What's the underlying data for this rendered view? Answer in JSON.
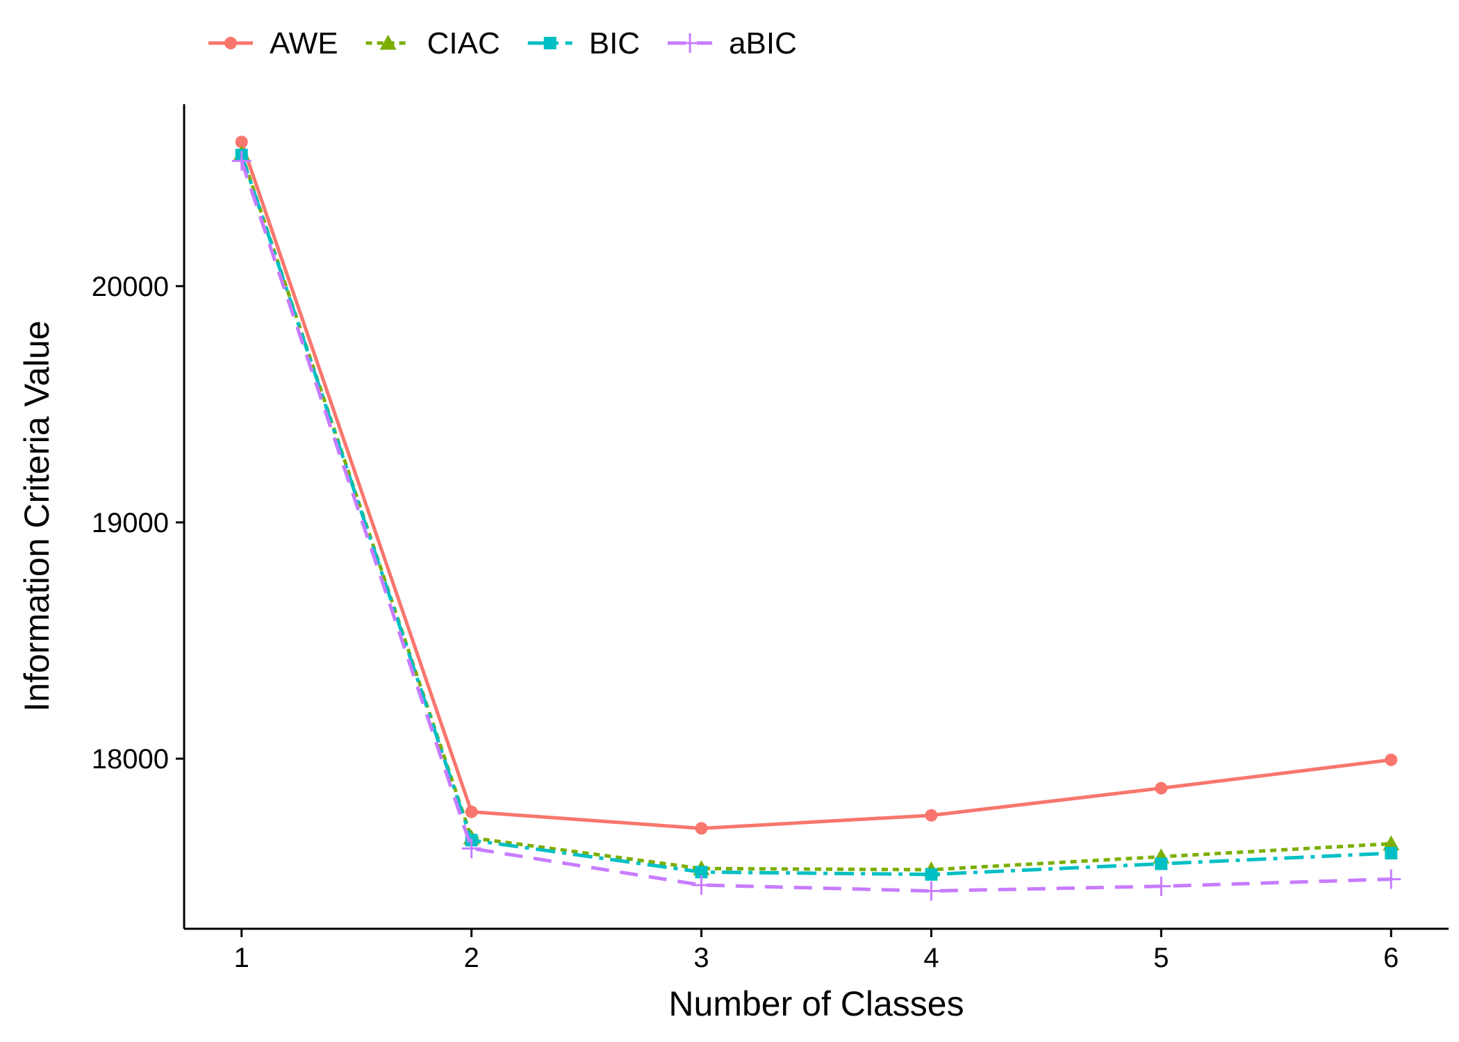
{
  "chart_data": {
    "type": "line",
    "title": "",
    "xlabel": "Number of Classes",
    "ylabel": "Information Criteria Value",
    "x": [
      1,
      2,
      3,
      4,
      5,
      6
    ],
    "xlim": [
      0.75,
      6.25
    ],
    "ylim": [
      17280,
      20770
    ],
    "yticks": [
      18000,
      19000,
      20000
    ],
    "grid": false,
    "legend_position": "top-left",
    "series": [
      {
        "name": "AWE",
        "color": "#F8766D",
        "marker": "circle",
        "line_style": "solid",
        "values": [
          20610,
          17775,
          17705,
          17760,
          17875,
          17995
        ]
      },
      {
        "name": "CIAC",
        "color": "#7CAE00",
        "marker": "triangle",
        "line_style": "dotted",
        "values": [
          20560,
          17665,
          17535,
          17530,
          17585,
          17640
        ]
      },
      {
        "name": "BIC",
        "color": "#00BFC4",
        "marker": "square",
        "line_style": "dashdot",
        "values": [
          20555,
          17655,
          17520,
          17510,
          17555,
          17600
        ]
      },
      {
        "name": "aBIC",
        "color": "#C77CFF",
        "marker": "plus",
        "line_style": "dashed",
        "values": [
          20530,
          17620,
          17465,
          17440,
          17460,
          17490
        ]
      }
    ]
  }
}
